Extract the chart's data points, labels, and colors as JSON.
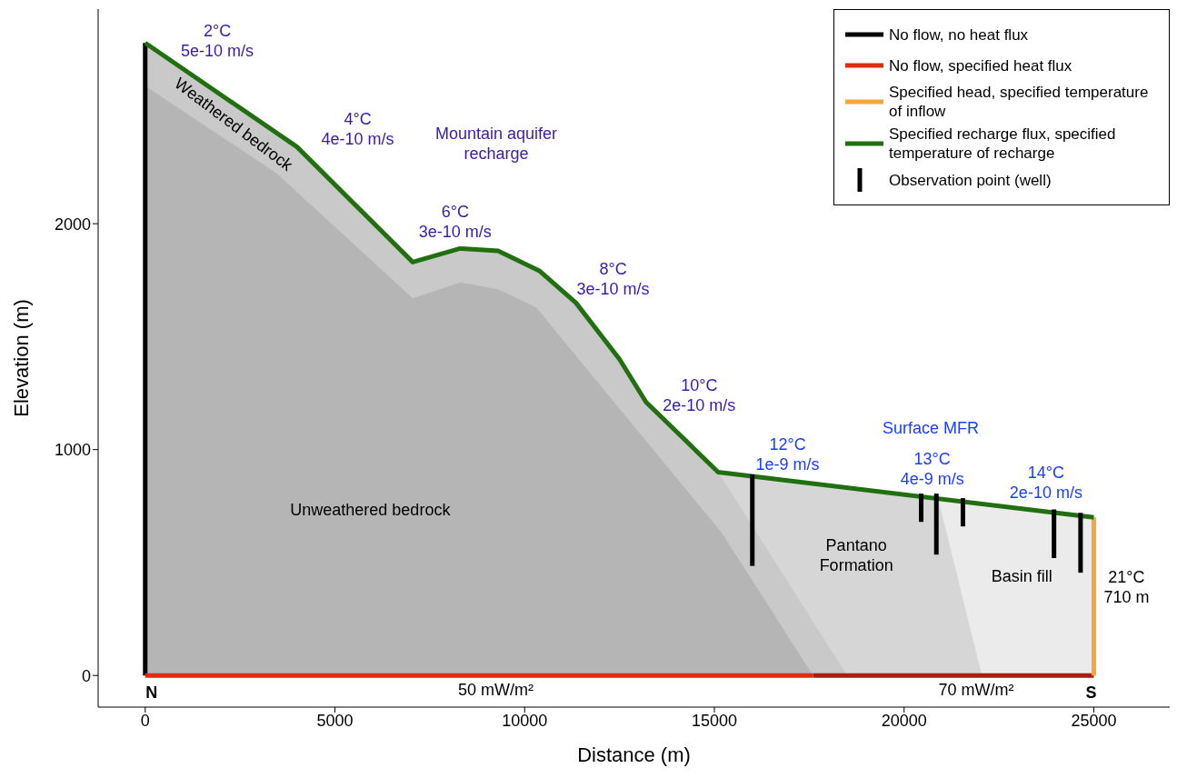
{
  "chart_data": {
    "type": "line",
    "xlabel": "Distance (m)",
    "ylabel": "Elevation (m)",
    "xlim": [
      -1240,
      27000
    ],
    "xticks": [
      0,
      5000,
      10000,
      15000,
      20000,
      25000
    ],
    "ylim": [
      -140,
      2950
    ],
    "yticks": [
      0,
      1000,
      2000
    ],
    "legend": "top right",
    "series": [
      {
        "type": "area",
        "color": "#ebebeb",
        "x": [
          15100,
          25000
        ],
        "values": [
          900,
          700
        ]
      },
      {
        "type": "area",
        "color": "#d6d6d6",
        "x": [
          15100,
          20900,
          22050
        ],
        "values": [
          900,
          780,
          0
        ]
      },
      {
        "type": "area",
        "color": "#c9c9c9",
        "x": [
          0,
          4000,
          7050,
          8300,
          9300,
          10400,
          11350,
          12500,
          13200,
          15100,
          18500
        ],
        "values": [
          2800,
          2340,
          1830,
          1890,
          1880,
          1790,
          1650,
          1400,
          1210,
          900,
          0
        ]
      },
      {
        "type": "area",
        "color": "#b5b5b5",
        "x": [
          0,
          3450,
          7050,
          8300,
          9300,
          10300,
          15200,
          17600
        ],
        "values": [
          2610,
          2225,
          1670,
          1740,
          1710,
          1630,
          630,
          0
        ]
      },
      {
        "name": "No flow, no heat flux",
        "color": "#000000",
        "x": [
          0,
          0
        ],
        "values": [
          0,
          2800
        ]
      },
      {
        "name": "No flow, specified heat flux",
        "color": "#dd2c10",
        "x": [
          0,
          17600
        ],
        "values": [
          0,
          0
        ]
      },
      {
        "color": "#a61f0f",
        "x": [
          17600,
          25000
        ],
        "values": [
          0,
          0
        ]
      },
      {
        "name": "Specified head, specified temperature of inflow",
        "color": "#f9a53c",
        "x": [
          25000,
          25000
        ],
        "values": [
          0,
          700
        ]
      },
      {
        "name": "Specified recharge flux, specified temperature of recharge",
        "color": "#207010",
        "x": [
          0,
          4000,
          7050,
          8300,
          9300,
          10400,
          11350,
          12500,
          13200,
          15100,
          25000
        ],
        "values": [
          2800,
          2340,
          1830,
          1890,
          1880,
          1790,
          1650,
          1400,
          1210,
          900,
          700
        ]
      },
      {
        "name": "Observation point (well)",
        "color": "#000000",
        "x": [
          16000,
          16000
        ],
        "values": [
          890,
          485
        ]
      },
      {
        "color": "#000000",
        "x": [
          20450,
          20450
        ],
        "values": [
          805,
          680
        ]
      },
      {
        "color": "#000000",
        "x": [
          20850,
          20850
        ],
        "values": [
          805,
          535
        ]
      },
      {
        "color": "#000000",
        "x": [
          21550,
          21550
        ],
        "values": [
          785,
          660
        ]
      },
      {
        "color": "#000000",
        "x": [
          23950,
          23950
        ],
        "values": [
          735,
          520
        ]
      },
      {
        "color": "#000000",
        "x": [
          24650,
          24650
        ],
        "values": [
          720,
          455
        ]
      }
    ],
    "annotations": [
      "2°C\n5e-10 m/s",
      "4°C\n4e-10 m/s",
      "Mountain aquifer\nrecharge",
      "6°C\n3e-10 m/s",
      "8°C\n3e-10 m/s",
      "10°C\n2e-10 m/s",
      "12°C\n1e-9 m/s",
      "Surface MFR",
      "13°C\n4e-9 m/s",
      "14°C\n2e-10 m/s",
      "21°C\n710 m",
      "Unweathered bedrock",
      "Weathered bedrock",
      "Pantano\nFormation",
      "Basin fill",
      "50 mW/m²",
      "70 mW/m²",
      "N",
      "S"
    ]
  }
}
